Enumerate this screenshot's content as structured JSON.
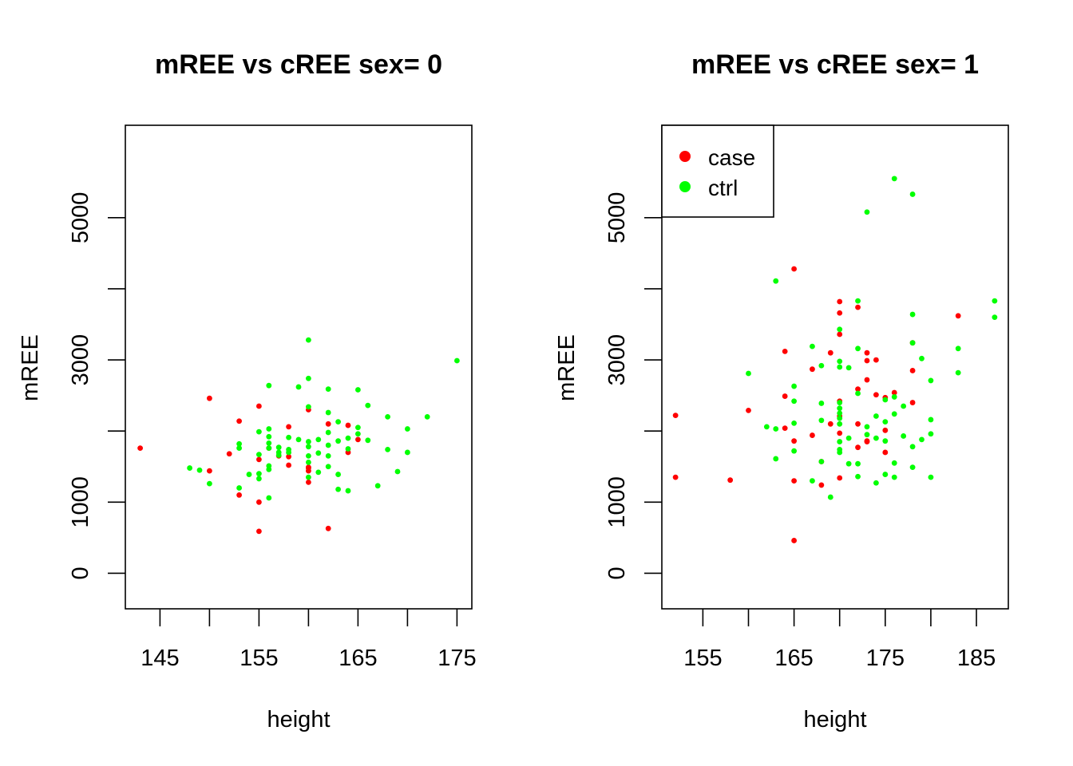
{
  "colors": {
    "case": "#ff0000",
    "ctrl": "#00ff00",
    "axis": "#000000"
  },
  "legend": {
    "position": "top-left",
    "entries": [
      {
        "label": "case",
        "color": "#ff0000"
      },
      {
        "label": "ctrl",
        "color": "#00ff00"
      }
    ]
  },
  "chart_data": [
    {
      "type": "scatter",
      "title": "mREE vs cREE sex= 0",
      "xlabel": "height",
      "ylabel": "mREE",
      "xlim": [
        141.5,
        176.5
      ],
      "ylim": [
        -500,
        6300
      ],
      "xticks": [
        145,
        155,
        165,
        175
      ],
      "xtick_minor": [
        150,
        160,
        170
      ],
      "yticks": [
        0,
        1000,
        3000,
        5000
      ],
      "ytick_minor": [
        2000,
        4000
      ],
      "legend": false,
      "series": [
        {
          "name": "case",
          "color": "#ff0000",
          "points": [
            [
              143,
              1760
            ],
            [
              150,
              2460
            ],
            [
              150,
              1440
            ],
            [
              152,
              1680
            ],
            [
              153,
              2140
            ],
            [
              153,
              1100
            ],
            [
              155,
              2350
            ],
            [
              155,
              1600
            ],
            [
              155,
              1000
            ],
            [
              155,
              590
            ],
            [
              156,
              1760
            ],
            [
              157,
              1650
            ],
            [
              158,
              2060
            ],
            [
              158,
              1640
            ],
            [
              158,
              1520
            ],
            [
              160,
              2300
            ],
            [
              160,
              1490
            ],
            [
              160,
              1440
            ],
            [
              160,
              1280
            ],
            [
              160,
              1480
            ],
            [
              162,
              2100
            ],
            [
              162,
              630
            ],
            [
              164,
              2080
            ],
            [
              164,
              1700
            ],
            [
              165,
              1880
            ]
          ]
        },
        {
          "name": "ctrl",
          "color": "#00ff00",
          "points": [
            [
              148,
              1480
            ],
            [
              149,
              1450
            ],
            [
              150,
              1260
            ],
            [
              153,
              1820
            ],
            [
              153,
              1760
            ],
            [
              153,
              1200
            ],
            [
              154,
              1390
            ],
            [
              155,
              1990
            ],
            [
              155,
              1670
            ],
            [
              155,
              1400
            ],
            [
              155,
              1330
            ],
            [
              156,
              2640
            ],
            [
              156,
              2030
            ],
            [
              156,
              1920
            ],
            [
              156,
              1830
            ],
            [
              156,
              1760
            ],
            [
              156,
              1510
            ],
            [
              156,
              1460
            ],
            [
              156,
              1060
            ],
            [
              157,
              1770
            ],
            [
              157,
              1700
            ],
            [
              157,
              1660
            ],
            [
              158,
              1910
            ],
            [
              158,
              1740
            ],
            [
              158,
              1700
            ],
            [
              159,
              2620
            ],
            [
              159,
              1880
            ],
            [
              160,
              3280
            ],
            [
              160,
              2740
            ],
            [
              160,
              2340
            ],
            [
              160,
              1850
            ],
            [
              160,
              1780
            ],
            [
              160,
              1650
            ],
            [
              160,
              1560
            ],
            [
              160,
              1350
            ],
            [
              161,
              1880
            ],
            [
              161,
              1690
            ],
            [
              161,
              1420
            ],
            [
              162,
              2590
            ],
            [
              162,
              2260
            ],
            [
              162,
              1980
            ],
            [
              162,
              1800
            ],
            [
              162,
              1650
            ],
            [
              162,
              1500
            ],
            [
              163,
              2130
            ],
            [
              163,
              1860
            ],
            [
              163,
              1390
            ],
            [
              163,
              1180
            ],
            [
              164,
              1900
            ],
            [
              164,
              1750
            ],
            [
              164,
              1160
            ],
            [
              165,
              2580
            ],
            [
              165,
              2050
            ],
            [
              165,
              1960
            ],
            [
              166,
              2360
            ],
            [
              166,
              1870
            ],
            [
              167,
              1230
            ],
            [
              168,
              2200
            ],
            [
              168,
              1740
            ],
            [
              169,
              1430
            ],
            [
              170,
              2030
            ],
            [
              170,
              1700
            ],
            [
              172,
              2200
            ],
            [
              175,
              2990
            ]
          ]
        }
      ]
    },
    {
      "type": "scatter",
      "title": "mREE vs cREE sex= 1",
      "xlabel": "height",
      "ylabel": "mREE",
      "xlim": [
        150.5,
        188.5
      ],
      "ylim": [
        -500,
        6300
      ],
      "xticks": [
        155,
        165,
        175,
        185
      ],
      "xtick_minor": [
        160,
        170,
        180
      ],
      "yticks": [
        0,
        1000,
        3000,
        5000
      ],
      "ytick_minor": [
        2000,
        4000
      ],
      "legend": true,
      "series": [
        {
          "name": "case",
          "color": "#ff0000",
          "points": [
            [
              152,
              2220
            ],
            [
              152,
              1350
            ],
            [
              158,
              1310
            ],
            [
              160,
              2290
            ],
            [
              164,
              3120
            ],
            [
              164,
              2490
            ],
            [
              164,
              2040
            ],
            [
              165,
              4280
            ],
            [
              165,
              1860
            ],
            [
              165,
              1300
            ],
            [
              165,
              460
            ],
            [
              167,
              2870
            ],
            [
              167,
              1940
            ],
            [
              168,
              1240
            ],
            [
              168,
              1570
            ],
            [
              169,
              3100
            ],
            [
              169,
              2100
            ],
            [
              170,
              3820
            ],
            [
              170,
              3660
            ],
            [
              170,
              3360
            ],
            [
              170,
              2420
            ],
            [
              170,
              2210
            ],
            [
              170,
              1970
            ],
            [
              170,
              1340
            ],
            [
              172,
              3740
            ],
            [
              172,
              2590
            ],
            [
              172,
              2100
            ],
            [
              172,
              1770
            ],
            [
              173,
              3100
            ],
            [
              173,
              2990
            ],
            [
              173,
              2720
            ],
            [
              173,
              1850
            ],
            [
              173,
              1860
            ],
            [
              174,
              3000
            ],
            [
              174,
              2510
            ],
            [
              175,
              2470
            ],
            [
              175,
              2010
            ],
            [
              175,
              1700
            ],
            [
              176,
              2540
            ],
            [
              178,
              3240
            ],
            [
              178,
              2850
            ],
            [
              178,
              2400
            ],
            [
              183,
              3620
            ]
          ]
        },
        {
          "name": "ctrl",
          "color": "#00ff00",
          "points": [
            [
              160,
              2810
            ],
            [
              162,
              2060
            ],
            [
              163,
              4110
            ],
            [
              163,
              2030
            ],
            [
              163,
              1610
            ],
            [
              165,
              2630
            ],
            [
              165,
              2420
            ],
            [
              165,
              2110
            ],
            [
              165,
              1720
            ],
            [
              167,
              3190
            ],
            [
              167,
              1300
            ],
            [
              168,
              2920
            ],
            [
              168,
              2390
            ],
            [
              168,
              2150
            ],
            [
              168,
              1570
            ],
            [
              169,
              1070
            ],
            [
              170,
              2980
            ],
            [
              170,
              2900
            ],
            [
              170,
              2400
            ],
            [
              170,
              2320
            ],
            [
              170,
              2250
            ],
            [
              170,
              2180
            ],
            [
              170,
              2100
            ],
            [
              170,
              1850
            ],
            [
              170,
              1740
            ],
            [
              170,
              1700
            ],
            [
              170,
              3430
            ],
            [
              171,
              2890
            ],
            [
              171,
              1900
            ],
            [
              171,
              1540
            ],
            [
              172,
              3830
            ],
            [
              172,
              3160
            ],
            [
              172,
              2530
            ],
            [
              172,
              1540
            ],
            [
              172,
              1360
            ],
            [
              173,
              5080
            ],
            [
              173,
              2060
            ],
            [
              173,
              1950
            ],
            [
              174,
              2210
            ],
            [
              174,
              1900
            ],
            [
              174,
              1270
            ],
            [
              175,
              2440
            ],
            [
              175,
              2130
            ],
            [
              175,
              1860
            ],
            [
              175,
              1390
            ],
            [
              176,
              5550
            ],
            [
              176,
              2480
            ],
            [
              176,
              2240
            ],
            [
              176,
              1550
            ],
            [
              176,
              1350
            ],
            [
              177,
              2350
            ],
            [
              177,
              1930
            ],
            [
              178,
              5330
            ],
            [
              178,
              3640
            ],
            [
              178,
              3240
            ],
            [
              178,
              1780
            ],
            [
              178,
              1490
            ],
            [
              179,
              3020
            ],
            [
              179,
              1880
            ],
            [
              180,
              2710
            ],
            [
              180,
              2160
            ],
            [
              180,
              1960
            ],
            [
              180,
              1350
            ],
            [
              183,
              3160
            ],
            [
              183,
              2820
            ],
            [
              187,
              3830
            ],
            [
              187,
              3600
            ]
          ]
        }
      ]
    }
  ]
}
